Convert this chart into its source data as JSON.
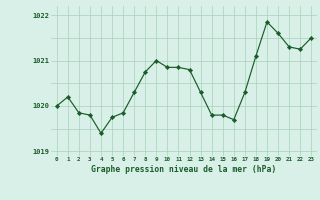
{
  "hours": [
    0,
    1,
    2,
    3,
    4,
    5,
    6,
    7,
    8,
    9,
    10,
    11,
    12,
    13,
    14,
    15,
    16,
    17,
    18,
    19,
    20,
    21,
    22,
    23
  ],
  "pressure": [
    1020.0,
    1020.2,
    1019.85,
    1019.8,
    1019.4,
    1019.75,
    1019.85,
    1020.3,
    1020.75,
    1021.0,
    1020.85,
    1020.85,
    1020.8,
    1020.3,
    1019.8,
    1019.8,
    1019.7,
    1020.3,
    1021.1,
    1021.85,
    1021.6,
    1021.3,
    1021.25,
    1021.5
  ],
  "ylim": [
    1018.9,
    1022.2
  ],
  "yticks": [
    1019,
    1020,
    1021,
    1022
  ],
  "bg_color": "#d8f0e8",
  "grid_color": "#aacfba",
  "line_color": "#1a5c2a",
  "marker_color": "#1a5c2a",
  "xlabel": "Graphe pression niveau de la mer (hPa)",
  "xlabel_color": "#1a5c2a",
  "tick_color": "#1a5c2a"
}
